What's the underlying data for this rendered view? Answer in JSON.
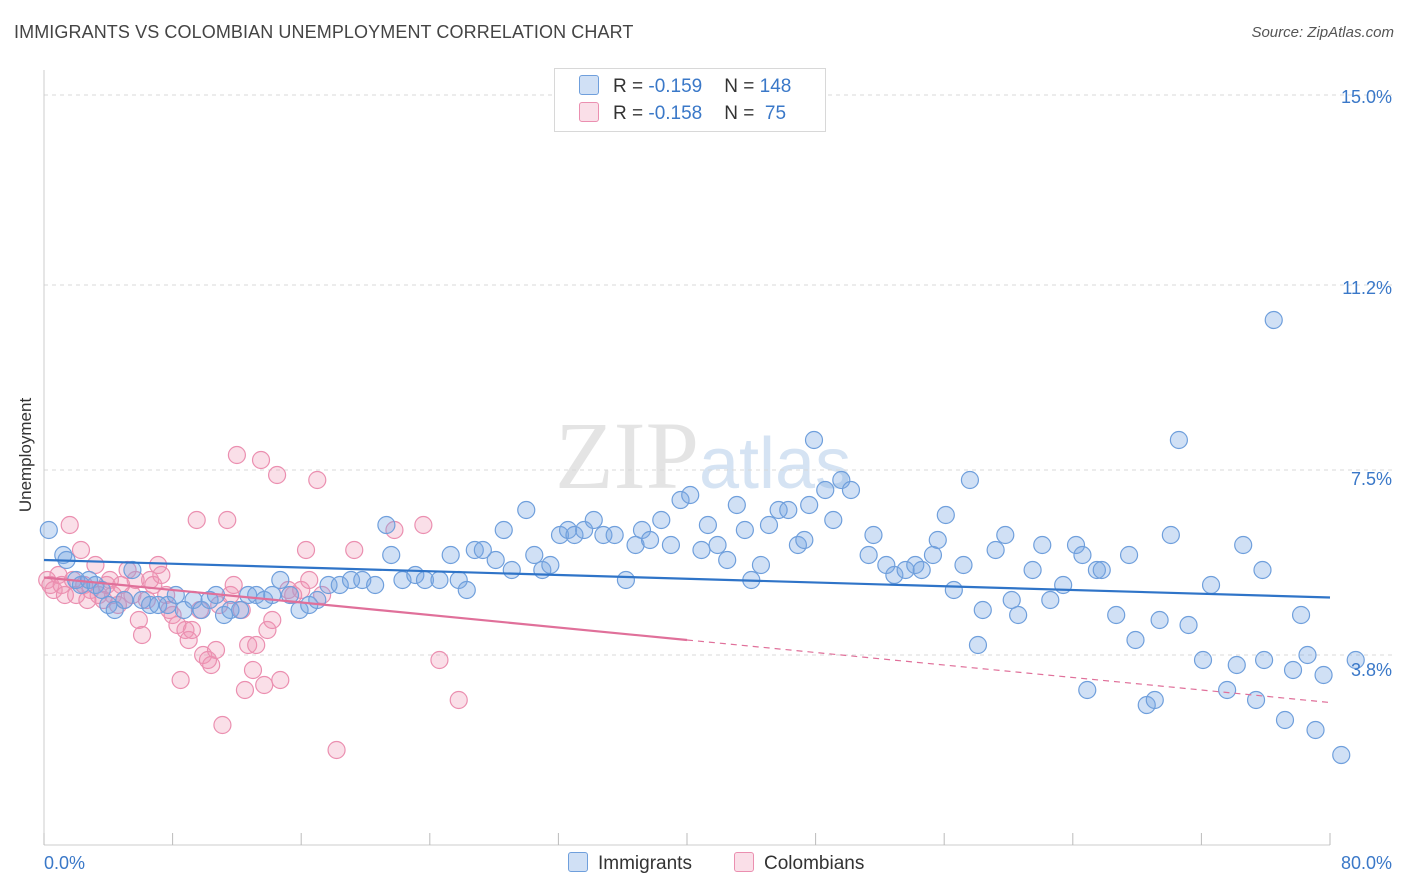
{
  "title": "IMMIGRANTS VS COLOMBIAN UNEMPLOYMENT CORRELATION CHART",
  "source": "Source: ZipAtlas.com",
  "watermark": {
    "main": "ZIP",
    "sub": "atlas"
  },
  "colors": {
    "immigrants_fill": "rgba(120,165,225,0.35)",
    "immigrants_stroke": "#6f9fdc",
    "immigrants_line": "#2f74c8",
    "colombians_fill": "rgba(240,150,180,0.30)",
    "colombians_stroke": "#eb8fb0",
    "colombians_line": "#e0709a",
    "grid": "#d8d8d8",
    "tick_text": "#3a78c8"
  },
  "legend_top": {
    "rows": [
      {
        "r_label": "R = ",
        "r_value": "-0.159",
        "n_label": "N = ",
        "n_value": "148"
      },
      {
        "r_label": "R = ",
        "r_value": "-0.158",
        "n_label": "N = ",
        "n_value": " 75"
      }
    ]
  },
  "legend_bottom": {
    "immigrants": "Immigrants",
    "colombians": "Colombians"
  },
  "chart_data": {
    "type": "scatter",
    "title": "IMMIGRANTS VS COLOMBIAN UNEMPLOYMENT CORRELATION CHART",
    "xlabel": "",
    "ylabel": "Unemployment",
    "xlim": [
      0,
      80
    ],
    "ylim": [
      0,
      15.5
    ],
    "x_tick_labels": [
      "0.0%",
      "80.0%"
    ],
    "y_ticks": [
      3.8,
      7.5,
      11.2,
      15.0
    ],
    "y_tick_labels": [
      "3.8%",
      "7.5%",
      "11.2%",
      "15.0%"
    ],
    "grid": "horizontal dashed",
    "legend": "top-center",
    "series": [
      {
        "name": "Immigrants",
        "R": -0.159,
        "N": 148,
        "trend": {
          "x": [
            0,
            80
          ],
          "y": [
            5.7,
            4.95
          ]
        },
        "points": [
          [
            0.3,
            6.3
          ],
          [
            1.2,
            5.8
          ],
          [
            1.4,
            5.7
          ],
          [
            2.0,
            5.3
          ],
          [
            2.3,
            5.2
          ],
          [
            2.8,
            5.3
          ],
          [
            3.2,
            5.2
          ],
          [
            3.6,
            5.1
          ],
          [
            4.0,
            4.8
          ],
          [
            4.4,
            4.7
          ],
          [
            5.0,
            4.9
          ],
          [
            5.5,
            5.5
          ],
          [
            6.1,
            4.9
          ],
          [
            6.6,
            4.8
          ],
          [
            7.1,
            4.8
          ],
          [
            7.7,
            4.8
          ],
          [
            8.2,
            5.0
          ],
          [
            8.7,
            4.7
          ],
          [
            9.3,
            4.9
          ],
          [
            9.8,
            4.7
          ],
          [
            10.3,
            4.9
          ],
          [
            10.7,
            5.0
          ],
          [
            11.2,
            4.6
          ],
          [
            11.6,
            4.7
          ],
          [
            12.2,
            4.7
          ],
          [
            12.7,
            5.0
          ],
          [
            13.2,
            5.0
          ],
          [
            13.7,
            4.9
          ],
          [
            14.2,
            5.0
          ],
          [
            14.7,
            5.3
          ],
          [
            15.3,
            5.0
          ],
          [
            15.9,
            4.7
          ],
          [
            16.5,
            4.8
          ],
          [
            17.0,
            4.9
          ],
          [
            17.7,
            5.2
          ],
          [
            18.4,
            5.2
          ],
          [
            19.1,
            5.3
          ],
          [
            19.8,
            5.3
          ],
          [
            20.6,
            5.2
          ],
          [
            21.3,
            6.4
          ],
          [
            21.6,
            5.8
          ],
          [
            22.3,
            5.3
          ],
          [
            23.1,
            5.4
          ],
          [
            23.7,
            5.3
          ],
          [
            24.6,
            5.3
          ],
          [
            25.3,
            5.8
          ],
          [
            25.8,
            5.3
          ],
          [
            26.3,
            5.1
          ],
          [
            26.8,
            5.9
          ],
          [
            27.3,
            5.9
          ],
          [
            28.1,
            5.7
          ],
          [
            28.6,
            6.3
          ],
          [
            29.1,
            5.5
          ],
          [
            30.0,
            6.7
          ],
          [
            30.5,
            5.8
          ],
          [
            31.0,
            5.5
          ],
          [
            31.5,
            5.6
          ],
          [
            32.1,
            6.2
          ],
          [
            32.6,
            6.3
          ],
          [
            33.0,
            6.2
          ],
          [
            33.6,
            6.3
          ],
          [
            34.2,
            6.5
          ],
          [
            34.8,
            6.2
          ],
          [
            35.5,
            6.2
          ],
          [
            36.2,
            5.3
          ],
          [
            36.8,
            6.0
          ],
          [
            37.2,
            6.3
          ],
          [
            37.7,
            6.1
          ],
          [
            38.4,
            6.5
          ],
          [
            39.0,
            6.0
          ],
          [
            39.6,
            6.9
          ],
          [
            40.2,
            7.0
          ],
          [
            40.9,
            5.9
          ],
          [
            41.3,
            6.4
          ],
          [
            41.9,
            6.0
          ],
          [
            42.5,
            5.7
          ],
          [
            43.1,
            6.8
          ],
          [
            43.6,
            6.3
          ],
          [
            44.0,
            5.3
          ],
          [
            44.6,
            5.6
          ],
          [
            45.1,
            6.4
          ],
          [
            45.7,
            6.7
          ],
          [
            46.3,
            6.7
          ],
          [
            46.9,
            6.0
          ],
          [
            47.3,
            6.1
          ],
          [
            47.6,
            6.8
          ],
          [
            47.9,
            8.1
          ],
          [
            48.6,
            7.1
          ],
          [
            49.1,
            6.5
          ],
          [
            49.6,
            7.3
          ],
          [
            50.2,
            7.1
          ],
          [
            51.3,
            5.8
          ],
          [
            51.6,
            6.2
          ],
          [
            52.4,
            5.6
          ],
          [
            52.9,
            5.4
          ],
          [
            53.6,
            5.5
          ],
          [
            54.2,
            5.6
          ],
          [
            54.6,
            5.5
          ],
          [
            55.3,
            5.8
          ],
          [
            55.6,
            6.1
          ],
          [
            56.1,
            6.6
          ],
          [
            56.6,
            5.1
          ],
          [
            57.2,
            5.6
          ],
          [
            57.6,
            7.3
          ],
          [
            58.1,
            4.0
          ],
          [
            58.4,
            4.7
          ],
          [
            59.2,
            5.9
          ],
          [
            59.8,
            6.2
          ],
          [
            60.2,
            4.9
          ],
          [
            60.6,
            4.6
          ],
          [
            61.5,
            5.5
          ],
          [
            62.1,
            6.0
          ],
          [
            62.6,
            4.9
          ],
          [
            63.4,
            5.2
          ],
          [
            64.2,
            6.0
          ],
          [
            64.6,
            5.8
          ],
          [
            64.9,
            3.1
          ],
          [
            65.5,
            5.5
          ],
          [
            65.8,
            5.5
          ],
          [
            66.7,
            4.6
          ],
          [
            67.5,
            5.8
          ],
          [
            67.9,
            4.1
          ],
          [
            68.6,
            2.8
          ],
          [
            69.1,
            2.9
          ],
          [
            69.4,
            4.5
          ],
          [
            70.1,
            6.2
          ],
          [
            70.6,
            8.1
          ],
          [
            71.2,
            4.4
          ],
          [
            72.1,
            3.7
          ],
          [
            72.6,
            5.2
          ],
          [
            73.6,
            3.1
          ],
          [
            74.2,
            3.6
          ],
          [
            74.6,
            6.0
          ],
          [
            75.4,
            2.9
          ],
          [
            75.9,
            3.7
          ],
          [
            75.8,
            5.5
          ],
          [
            76.5,
            10.5
          ],
          [
            77.2,
            2.5
          ],
          [
            77.7,
            3.5
          ],
          [
            78.2,
            4.6
          ],
          [
            78.6,
            3.8
          ],
          [
            79.1,
            2.3
          ],
          [
            79.6,
            3.4
          ],
          [
            80.7,
            1.8
          ],
          [
            81.6,
            3.7
          ]
        ]
      },
      {
        "name": "Colombians",
        "R": -0.158,
        "N": 75,
        "trend": {
          "x": [
            0,
            40
          ],
          "y": [
            5.35,
            4.1
          ]
        },
        "trend_dashed": {
          "x": [
            40,
            80
          ],
          "y": [
            4.1,
            2.85
          ]
        },
        "points": [
          [
            0.2,
            5.3
          ],
          [
            0.4,
            5.2
          ],
          [
            0.6,
            5.1
          ],
          [
            0.9,
            5.4
          ],
          [
            1.1,
            5.2
          ],
          [
            1.3,
            5.0
          ],
          [
            1.6,
            6.4
          ],
          [
            1.8,
            5.3
          ],
          [
            2.0,
            5.0
          ],
          [
            2.3,
            5.9
          ],
          [
            2.5,
            5.2
          ],
          [
            2.7,
            4.9
          ],
          [
            2.9,
            5.1
          ],
          [
            3.2,
            5.6
          ],
          [
            3.4,
            5.0
          ],
          [
            3.7,
            4.9
          ],
          [
            3.9,
            5.2
          ],
          [
            4.1,
            5.3
          ],
          [
            4.3,
            5.0
          ],
          [
            4.6,
            4.8
          ],
          [
            4.8,
            5.2
          ],
          [
            5.0,
            4.9
          ],
          [
            5.2,
            5.5
          ],
          [
            5.5,
            5.0
          ],
          [
            5.7,
            5.3
          ],
          [
            5.9,
            4.5
          ],
          [
            6.1,
            4.2
          ],
          [
            6.4,
            4.9
          ],
          [
            6.6,
            5.3
          ],
          [
            6.8,
            5.2
          ],
          [
            7.1,
            5.6
          ],
          [
            7.3,
            5.4
          ],
          [
            7.6,
            5.0
          ],
          [
            7.8,
            4.7
          ],
          [
            8.0,
            4.6
          ],
          [
            8.3,
            4.4
          ],
          [
            8.5,
            3.3
          ],
          [
            8.8,
            4.3
          ],
          [
            9.0,
            4.1
          ],
          [
            9.2,
            4.3
          ],
          [
            9.5,
            6.5
          ],
          [
            9.7,
            4.7
          ],
          [
            9.9,
            3.8
          ],
          [
            10.2,
            3.7
          ],
          [
            10.4,
            3.6
          ],
          [
            10.7,
            3.9
          ],
          [
            10.9,
            4.8
          ],
          [
            11.1,
            2.4
          ],
          [
            11.4,
            6.5
          ],
          [
            11.6,
            5.0
          ],
          [
            11.8,
            5.2
          ],
          [
            12.0,
            7.8
          ],
          [
            12.3,
            4.7
          ],
          [
            12.5,
            3.1
          ],
          [
            12.7,
            4.0
          ],
          [
            13.0,
            3.5
          ],
          [
            13.2,
            4.0
          ],
          [
            13.5,
            7.7
          ],
          [
            13.7,
            3.2
          ],
          [
            13.9,
            4.3
          ],
          [
            14.2,
            4.5
          ],
          [
            14.5,
            7.4
          ],
          [
            14.7,
            3.3
          ],
          [
            15.2,
            5.1
          ],
          [
            15.5,
            5.0
          ],
          [
            16.0,
            5.1
          ],
          [
            16.3,
            5.9
          ],
          [
            16.5,
            5.3
          ],
          [
            17.0,
            7.3
          ],
          [
            17.3,
            5.0
          ],
          [
            18.2,
            1.9
          ],
          [
            19.3,
            5.9
          ],
          [
            21.8,
            6.3
          ],
          [
            23.6,
            6.4
          ],
          [
            24.6,
            3.7
          ],
          [
            25.8,
            2.9
          ]
        ]
      }
    ]
  }
}
